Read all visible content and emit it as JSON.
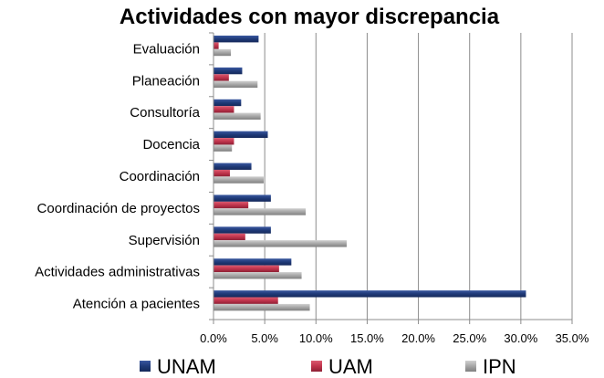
{
  "chart_data": {
    "type": "bar",
    "orientation": "horizontal",
    "title": "Actividades con mayor discrepancia",
    "xlabel": "",
    "ylabel": "",
    "categories": [
      "Evaluación",
      "Planeación",
      "Consultoría",
      "Docencia",
      "Coordinación",
      "Coordinación de proyectos",
      "Supervisión",
      "Actividades administrativas",
      "Atención a pacientes"
    ],
    "series": [
      {
        "name": "UNAM",
        "color": "#1F3A78",
        "values": [
          4.4,
          2.8,
          2.7,
          5.3,
          3.7,
          5.6,
          5.6,
          7.6,
          30.5
        ]
      },
      {
        "name": "UAM",
        "color": "#C0344C",
        "values": [
          0.5,
          1.5,
          2.0,
          2.0,
          1.6,
          3.4,
          3.1,
          6.4,
          6.3
        ]
      },
      {
        "name": "IPN",
        "color": "#A6A6A6",
        "values": [
          1.7,
          4.3,
          4.6,
          1.8,
          4.9,
          9.0,
          13.0,
          8.6,
          9.4
        ]
      }
    ],
    "xlim": [
      0,
      35
    ],
    "xticks": [
      "0.0%",
      "5.0%",
      "10.0%",
      "15.0%",
      "20.0%",
      "25.0%",
      "30.0%",
      "35.0%"
    ],
    "grid": true,
    "legend_position": "bottom"
  }
}
